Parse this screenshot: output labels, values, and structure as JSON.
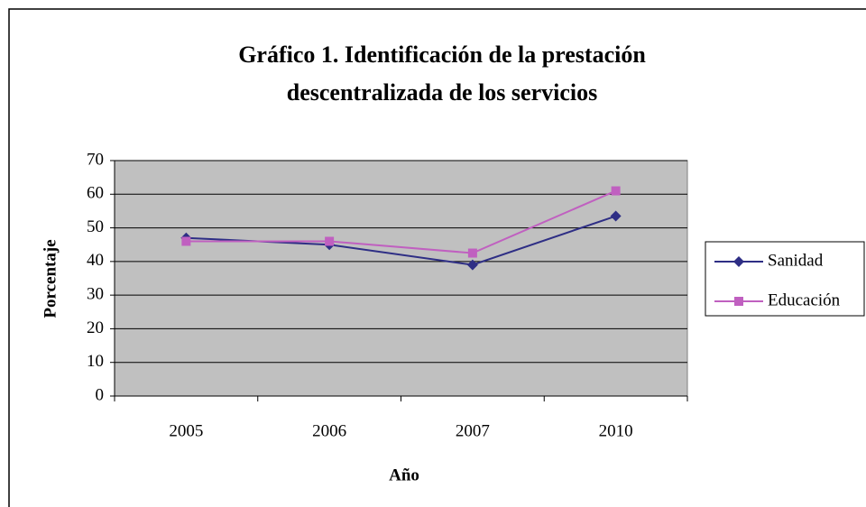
{
  "chart_data": {
    "type": "line",
    "title": "Gráfico 1. Identificación de la prestación descentralizada de los servicios",
    "x_label": "Año",
    "y_label": "Porcentaje",
    "categories": [
      "2005",
      "2006",
      "2007",
      "2010"
    ],
    "series": [
      {
        "name": "Sanidad",
        "color": "#2e2e85",
        "marker": "diamond",
        "values": [
          47,
          45,
          39,
          53.5
        ]
      },
      {
        "name": "Educación",
        "color": "#c060c0",
        "marker": "square",
        "values": [
          46,
          46,
          42.5,
          61
        ]
      }
    ],
    "ylim": [
      0,
      70
    ],
    "yticks": [
      0,
      10,
      20,
      30,
      40,
      50,
      60,
      70
    ],
    "grid": true,
    "plot_background": "#c0c0c0",
    "legend": "right"
  }
}
